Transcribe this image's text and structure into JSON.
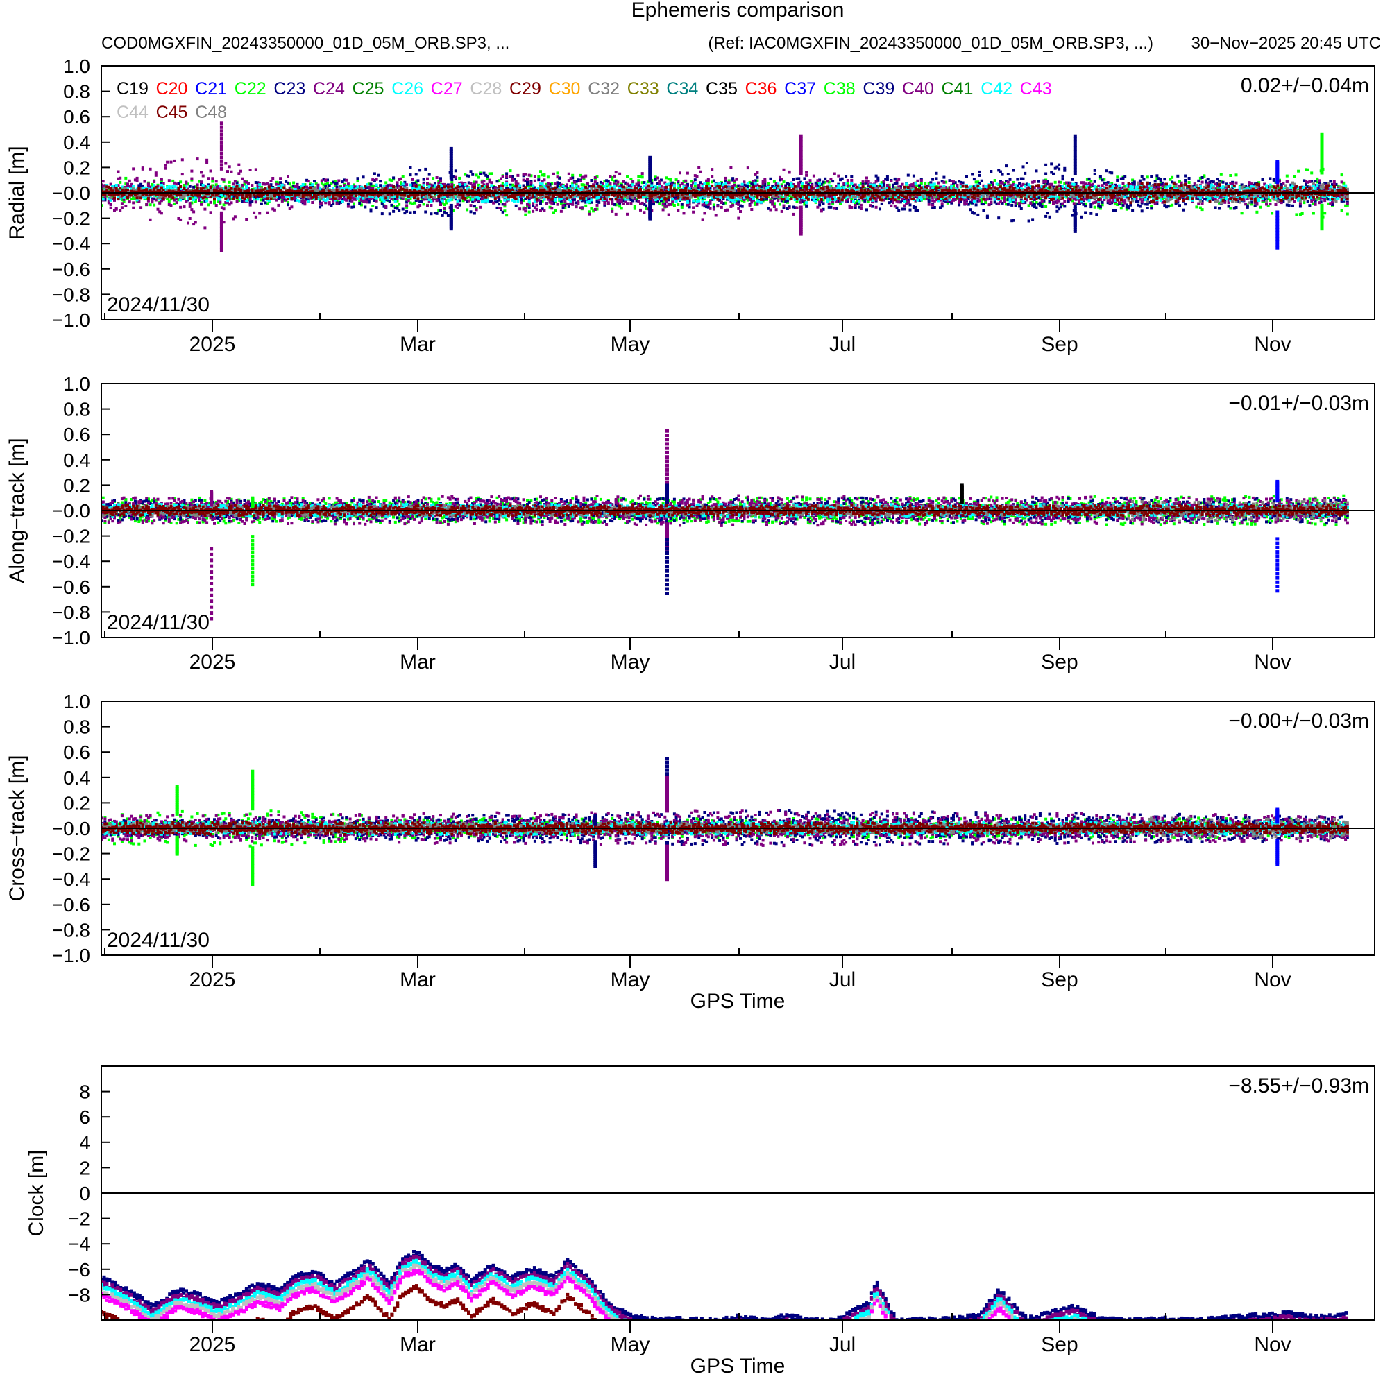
{
  "header": {
    "title": "Ephemeris comparison",
    "source": "COD0MGXFIN_20243350000_01D_05M_ORB.SP3, ...",
    "reference": "(Ref: IAC0MGXFIN_20243350000_01D_05M_ORB.SP3, ...)",
    "generated": "30−Nov−2025 20:45 UTC"
  },
  "legend": {
    "rows": [
      [
        {
          "label": "C19",
          "color": "#000000"
        },
        {
          "label": "C20",
          "color": "#ff0000"
        },
        {
          "label": "C21",
          "color": "#0000ff"
        },
        {
          "label": "C22",
          "color": "#00ff00"
        },
        {
          "label": "C23",
          "color": "#000080"
        },
        {
          "label": "C24",
          "color": "#800080"
        },
        {
          "label": "C25",
          "color": "#008000"
        },
        {
          "label": "C26",
          "color": "#00ffff"
        },
        {
          "label": "C27",
          "color": "#ff00ff"
        },
        {
          "label": "C28",
          "color": "#c0c0c0"
        },
        {
          "label": "C29",
          "color": "#800000"
        },
        {
          "label": "C30",
          "color": "#ffa500"
        },
        {
          "label": "C32",
          "color": "#808080"
        },
        {
          "label": "C33",
          "color": "#808000"
        },
        {
          "label": "C34",
          "color": "#008080"
        },
        {
          "label": "C35",
          "color": "#000000"
        },
        {
          "label": "C36",
          "color": "#ff0000"
        },
        {
          "label": "C37",
          "color": "#0000ff"
        },
        {
          "label": "C38",
          "color": "#00ff00"
        },
        {
          "label": "C39",
          "color": "#000080"
        },
        {
          "label": "C40",
          "color": "#800080"
        },
        {
          "label": "C41",
          "color": "#008000"
        },
        {
          "label": "C42",
          "color": "#00ffff"
        },
        {
          "label": "C43",
          "color": "#ff00ff"
        }
      ],
      [
        {
          "label": "C44",
          "color": "#c0c0c0"
        },
        {
          "label": "C45",
          "color": "#800000"
        },
        {
          "label": "C48",
          "color": "#808080"
        }
      ]
    ]
  },
  "chart_data": [
    {
      "type": "scatter",
      "name": "radial",
      "ylabel": "Radial [m]",
      "xlabel": "",
      "ylim": [
        -1.0,
        1.0
      ],
      "yticks": [
        1.0,
        0.8,
        0.6,
        0.4,
        0.2,
        0.0,
        -0.2,
        -0.4,
        -0.6,
        -0.8,
        -1.0
      ],
      "ytick_labels": [
        "1.0",
        "0.8",
        "0.6",
        "0.4",
        "0.2",
        "−0.0",
        "−0.2",
        "−0.4",
        "−0.6",
        "−0.8",
        "−1.0"
      ],
      "stat": "0.02+/−0.04m",
      "date_label": "2024/11/30",
      "x_tick_labels": [
        "2025",
        "Mar",
        "May",
        "Jul",
        "Sep",
        "Nov"
      ],
      "x_range_days": [
        0,
        364
      ],
      "series": [
        {
          "name": "C22/C38",
          "color": "#00ff00",
          "envelope": [
            [
              0,
              0.05,
              0.12
            ],
            [
              60,
              0.05,
              0.08
            ],
            [
              120,
              0.07,
              0.18
            ],
            [
              180,
              0.06,
              0.1
            ],
            [
              240,
              0.05,
              0.08
            ],
            [
              330,
              0.05,
              0.16
            ],
            [
              364,
              0.06,
              0.2
            ]
          ]
        },
        {
          "name": "C23/C39",
          "color": "#000080",
          "envelope": [
            [
              0,
              0.0,
              0.06
            ],
            [
              60,
              0.05,
              0.1
            ],
            [
              90,
              0.08,
              0.2
            ],
            [
              150,
              0.06,
              0.1
            ],
            [
              240,
              0.08,
              0.15
            ],
            [
              275,
              0.12,
              0.25
            ],
            [
              300,
              0.1,
              0.15
            ],
            [
              364,
              0.05,
              0.1
            ]
          ]
        },
        {
          "name": "C24/C40",
          "color": "#800080",
          "envelope": [
            [
              0,
              0.08,
              0.15
            ],
            [
              30,
              0.12,
              0.3
            ],
            [
              60,
              0.05,
              0.1
            ],
            [
              120,
              0.08,
              0.14
            ],
            [
              180,
              0.1,
              0.22
            ],
            [
              240,
              0.06,
              0.1
            ],
            [
              300,
              0.06,
              0.08
            ],
            [
              364,
              0.05,
              0.1
            ]
          ]
        },
        {
          "name": "C26/C42",
          "color": "#00ffff",
          "envelope": [
            [
              0,
              0.03,
              0.06
            ],
            [
              180,
              0.04,
              0.08
            ],
            [
              364,
              0.03,
              0.06
            ]
          ]
        },
        {
          "name": "C32/C48",
          "color": "#808080",
          "envelope": [
            [
              0,
              0.02,
              0.04
            ],
            [
              299,
              0.02,
              0.04
            ],
            [
              300,
              0.02,
              0.08
            ],
            [
              364,
              0.02,
              0.08
            ]
          ]
        },
        {
          "name": "C29/C45",
          "color": "#800000",
          "envelope": [
            [
              0,
              0.02,
              0.05
            ],
            [
              299,
              0.02,
              0.06
            ],
            [
              300,
              0.02,
              0.08
            ],
            [
              364,
              0.02,
              0.06
            ]
          ]
        }
      ],
      "spikes": [
        {
          "day": 35,
          "color": "#800080",
          "values": [
            0.55,
            -0.45
          ]
        },
        {
          "day": 102,
          "color": "#000080",
          "values": [
            0.35,
            -0.28
          ]
        },
        {
          "day": 160,
          "color": "#000080",
          "values": [
            0.28,
            -0.2
          ]
        },
        {
          "day": 204,
          "color": "#800080",
          "values": [
            0.45,
            -0.32
          ]
        },
        {
          "day": 284,
          "color": "#000080",
          "values": [
            0.45,
            -0.3
          ]
        },
        {
          "day": 343,
          "color": "#0000ff",
          "values": [
            0.25,
            -0.43
          ]
        },
        {
          "day": 356,
          "color": "#00ff00",
          "values": [
            0.46,
            -0.28
          ]
        }
      ]
    },
    {
      "type": "scatter",
      "name": "along-track",
      "ylabel": "Along−track [m]",
      "xlabel": "",
      "ylim": [
        -1.0,
        1.0
      ],
      "yticks": [
        1.0,
        0.8,
        0.6,
        0.4,
        0.2,
        0.0,
        -0.2,
        -0.4,
        -0.6,
        -0.8,
        -1.0
      ],
      "ytick_labels": [
        "1.0",
        "0.8",
        "0.6",
        "0.4",
        "0.2",
        "−0.0",
        "−0.2",
        "−0.4",
        "−0.6",
        "−0.8",
        "−1.0"
      ],
      "stat": "−0.01+/−0.03m",
      "date_label": "2024/11/30",
      "x_tick_labels": [
        "2025",
        "Mar",
        "May",
        "Jul",
        "Sep",
        "Nov"
      ],
      "x_range_days": [
        0,
        364
      ],
      "series": [
        {
          "name": "C22/C38",
          "color": "#00ff00",
          "envelope": [
            [
              0,
              0.06,
              0.1
            ],
            [
              180,
              0.06,
              0.1
            ],
            [
              364,
              0.06,
              0.12
            ]
          ]
        },
        {
          "name": "C23/C39",
          "color": "#000080",
          "envelope": [
            [
              0,
              0.05,
              0.08
            ],
            [
              180,
              0.05,
              0.1
            ],
            [
              364,
              0.05,
              0.1
            ]
          ]
        },
        {
          "name": "C24/C40",
          "color": "#800080",
          "envelope": [
            [
              0,
              0.06,
              0.1
            ],
            [
              180,
              0.06,
              0.12
            ],
            [
              364,
              0.06,
              0.1
            ]
          ]
        },
        {
          "name": "C26/C42",
          "color": "#00ffff",
          "envelope": [
            [
              0,
              0.03,
              0.05
            ],
            [
              364,
              0.03,
              0.05
            ]
          ]
        },
        {
          "name": "C32/C48",
          "color": "#808080",
          "envelope": [
            [
              0,
              0.02,
              0.04
            ],
            [
              299,
              0.02,
              0.04
            ],
            [
              300,
              0.03,
              0.08
            ],
            [
              364,
              0.03,
              0.08
            ]
          ]
        },
        {
          "name": "C29/C45",
          "color": "#800000",
          "envelope": [
            [
              0,
              0.02,
              0.04
            ],
            [
              364,
              0.02,
              0.04
            ]
          ]
        }
      ],
      "spikes": [
        {
          "day": 32,
          "color": "#800080",
          "values": [
            0.15,
            -0.85
          ]
        },
        {
          "day": 44,
          "color": "#00ff00",
          "values": [
            0.1,
            -0.58
          ]
        },
        {
          "day": 165,
          "color": "#800080",
          "values": [
            0.63,
            -0.3
          ]
        },
        {
          "day": 165,
          "color": "#000080",
          "values": [
            0.2,
            -0.65
          ]
        },
        {
          "day": 251,
          "color": "#000000",
          "values": [
            0.2
          ]
        },
        {
          "day": 343,
          "color": "#0000ff",
          "values": [
            0.23,
            -0.63
          ]
        }
      ]
    },
    {
      "type": "scatter",
      "name": "cross-track",
      "ylabel": "Cross−track [m]",
      "xlabel": "GPS Time",
      "ylim": [
        -1.0,
        1.0
      ],
      "yticks": [
        1.0,
        0.8,
        0.6,
        0.4,
        0.2,
        0.0,
        -0.2,
        -0.4,
        -0.6,
        -0.8,
        -1.0
      ],
      "ytick_labels": [
        "1.0",
        "0.8",
        "0.6",
        "0.4",
        "0.2",
        "−0.0",
        "−0.2",
        "−0.4",
        "−0.6",
        "−0.8",
        "−1.0"
      ],
      "stat": "−0.00+/−0.03m",
      "date_label": "2024/11/30",
      "x_tick_labels": [
        "2025",
        "Mar",
        "May",
        "Jul",
        "Sep",
        "Nov"
      ],
      "x_range_days": [
        0,
        364
      ],
      "series": [
        {
          "name": "C22/C38",
          "color": "#00ff00",
          "envelope": [
            [
              0,
              0.05,
              0.12
            ],
            [
              50,
              0.06,
              0.15
            ],
            [
              90,
              0.04,
              0.08
            ],
            [
              364,
              0.04,
              0.08
            ]
          ]
        },
        {
          "name": "C23/C39",
          "color": "#000080",
          "envelope": [
            [
              0,
              0.04,
              0.06
            ],
            [
              100,
              0.06,
              0.1
            ],
            [
              200,
              0.08,
              0.14
            ],
            [
              364,
              0.06,
              0.1
            ]
          ]
        },
        {
          "name": "C24/C40",
          "color": "#800080",
          "envelope": [
            [
              0,
              0.06,
              0.1
            ],
            [
              200,
              0.06,
              0.14
            ],
            [
              364,
              0.06,
              0.1
            ]
          ]
        },
        {
          "name": "C26/C42",
          "color": "#00ffff",
          "envelope": [
            [
              0,
              0.03,
              0.05
            ],
            [
              364,
              0.03,
              0.05
            ]
          ]
        },
        {
          "name": "C32/C48",
          "color": "#808080",
          "envelope": [
            [
              0,
              0.02,
              0.04
            ],
            [
              299,
              0.02,
              0.04
            ],
            [
              300,
              0.03,
              0.08
            ],
            [
              364,
              0.03,
              0.08
            ]
          ]
        },
        {
          "name": "C29/C45",
          "color": "#800000",
          "envelope": [
            [
              0,
              0.02,
              0.05
            ],
            [
              364,
              0.02,
              0.04
            ]
          ]
        }
      ],
      "spikes": [
        {
          "day": 22,
          "color": "#00ff00",
          "values": [
            0.33,
            -0.2
          ]
        },
        {
          "day": 44,
          "color": "#00ff00",
          "values": [
            0.45,
            -0.44
          ]
        },
        {
          "day": 144,
          "color": "#000080",
          "values": [
            0.1,
            -0.3
          ]
        },
        {
          "day": 165,
          "color": "#000080",
          "values": [
            0.55,
            -0.32
          ]
        },
        {
          "day": 165,
          "color": "#800080",
          "values": [
            0.4,
            -0.4
          ]
        },
        {
          "day": 343,
          "color": "#0000ff",
          "values": [
            0.15,
            -0.28
          ]
        }
      ]
    },
    {
      "type": "scatter",
      "name": "clock",
      "ylabel": "Clock [m]",
      "xlabel": "GPS Time",
      "ylim": [
        -10,
        10
      ],
      "yticks": [
        8,
        6,
        4,
        2,
        0,
        -2,
        -4,
        -6,
        -8
      ],
      "ytick_labels": [
        "8",
        "6",
        "4",
        "2",
        "0",
        "−2",
        "−4",
        "−6",
        "−8"
      ],
      "stat": "−8.55+/−0.93m",
      "date_label": "",
      "x_tick_labels": [
        "2025",
        "Mar",
        "May",
        "Jul",
        "Sep",
        "Nov"
      ],
      "x_range_days": [
        0,
        364
      ],
      "band_colors": [
        "#000080",
        "#800080",
        "#00ffff",
        "#c0c0c0",
        "#ff00ff",
        "#800000"
      ],
      "clock_curve": [
        [
          0,
          -6.5
        ],
        [
          8,
          -7.5
        ],
        [
          15,
          -8.8
        ],
        [
          22,
          -7.5
        ],
        [
          28,
          -7.8
        ],
        [
          34,
          -8.5
        ],
        [
          40,
          -7.8
        ],
        [
          46,
          -7.0
        ],
        [
          52,
          -7.5
        ],
        [
          56,
          -6.5
        ],
        [
          62,
          -6.0
        ],
        [
          68,
          -7.0
        ],
        [
          74,
          -6.0
        ],
        [
          78,
          -5.2
        ],
        [
          84,
          -7.0
        ],
        [
          88,
          -5.0
        ],
        [
          92,
          -4.5
        ],
        [
          96,
          -5.5
        ],
        [
          100,
          -6.0
        ],
        [
          104,
          -5.5
        ],
        [
          108,
          -6.8
        ],
        [
          114,
          -5.5
        ],
        [
          120,
          -6.5
        ],
        [
          126,
          -5.8
        ],
        [
          132,
          -6.5
        ],
        [
          136,
          -5.2
        ],
        [
          142,
          -6.5
        ],
        [
          148,
          -8.5
        ],
        [
          154,
          -9.5
        ],
        [
          160,
          -9.8
        ],
        [
          170,
          -9.8
        ],
        [
          180,
          -9.9
        ],
        [
          186,
          -9.6
        ],
        [
          194,
          -9.9
        ],
        [
          200,
          -9.5
        ],
        [
          206,
          -9.8
        ],
        [
          214,
          -9.9
        ],
        [
          224,
          -8.5
        ],
        [
          226,
          -6.8
        ],
        [
          232,
          -9.9
        ],
        [
          248,
          -9.8
        ],
        [
          256,
          -9.5
        ],
        [
          262,
          -7.5
        ],
        [
          270,
          -9.8
        ],
        [
          278,
          -9.2
        ],
        [
          284,
          -8.8
        ],
        [
          292,
          -9.8
        ],
        [
          300,
          -9.9
        ],
        [
          310,
          -9.7
        ],
        [
          320,
          -9.9
        ],
        [
          330,
          -9.6
        ],
        [
          340,
          -9.5
        ],
        [
          346,
          -9.3
        ],
        [
          352,
          -9.6
        ],
        [
          364,
          -9.4
        ]
      ]
    }
  ]
}
